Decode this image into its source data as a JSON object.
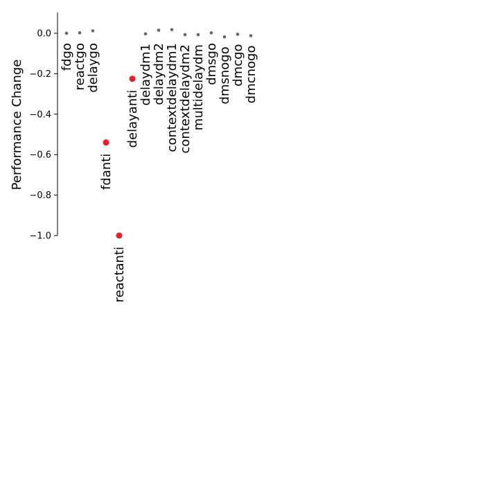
{
  "chart_data": {
    "type": "scatter",
    "title": "",
    "xlabel": "",
    "ylabel": "Performance Change",
    "ylim": [
      -1.0,
      0.1
    ],
    "yticks": [
      0.0,
      -0.2,
      -0.4,
      -0.6,
      -0.8,
      -1.0
    ],
    "ytick_labels": [
      "0.0",
      "−0.2",
      "−0.4",
      "−0.6",
      "−0.8",
      "−1.0"
    ],
    "grid": false,
    "highlight_color": "#e8202a",
    "normal_color": "#666666",
    "points": [
      {
        "label": "fdgo",
        "value": 0.0,
        "highlight": false
      },
      {
        "label": "reactgo",
        "value": 0.002,
        "highlight": false
      },
      {
        "label": "delaygo",
        "value": 0.012,
        "highlight": false
      },
      {
        "label": "fdanti",
        "value": -0.54,
        "highlight": true
      },
      {
        "label": "reactanti",
        "value": -1.0,
        "highlight": true
      },
      {
        "label": "delayanti",
        "value": -0.225,
        "highlight": true
      },
      {
        "label": "delaydm1",
        "value": -0.003,
        "highlight": false
      },
      {
        "label": "delaydm2",
        "value": 0.015,
        "highlight": false
      },
      {
        "label": "contextdelaydm1",
        "value": 0.018,
        "highlight": false
      },
      {
        "label": "contextdelaydm2",
        "value": -0.007,
        "highlight": false
      },
      {
        "label": "multidelaydm",
        "value": -0.007,
        "highlight": false
      },
      {
        "label": "dmsgo",
        "value": 0.002,
        "highlight": false
      },
      {
        "label": "dmsnogo",
        "value": -0.018,
        "highlight": false
      },
      {
        "label": "dmcgo",
        "value": -0.005,
        "highlight": false
      },
      {
        "label": "dmcnogo",
        "value": -0.012,
        "highlight": false
      }
    ]
  }
}
